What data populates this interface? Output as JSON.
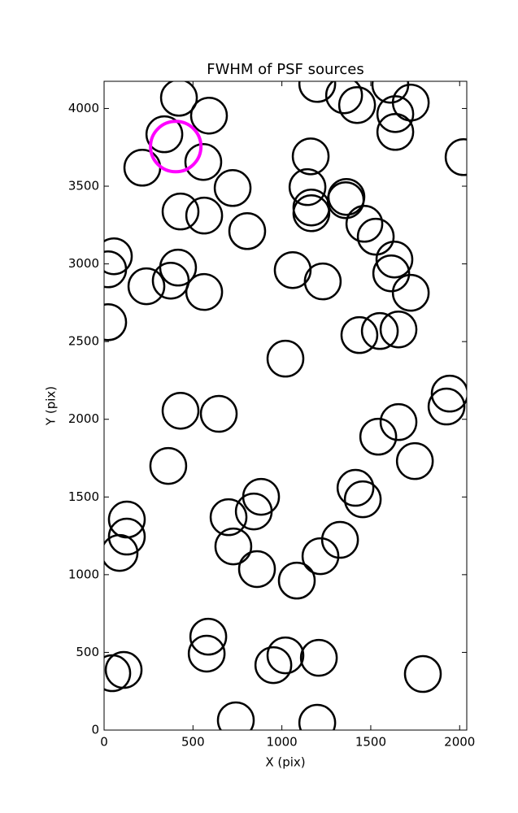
{
  "chart_data": {
    "type": "scatter",
    "title": "FWHM of PSF sources",
    "x_label": "X (pix)",
    "y_label": "Y (pix)",
    "xlim": [
      0,
      2040
    ],
    "ylim": [
      0,
      4175
    ],
    "xticks": [
      0,
      500,
      1000,
      1500,
      2000
    ],
    "yticks": [
      0,
      500,
      1000,
      1500,
      2000,
      2500,
      3000,
      3500,
      4000
    ],
    "series": [
      {
        "color": "#000000",
        "x": [
          421,
          590,
          339,
          215,
          558,
          723,
          430,
          563,
          805,
          55,
          23,
          416,
          375,
          238,
          563,
          23,
          1061,
          1230,
          1020,
          430,
          645,
          361,
          128,
          128,
          87,
          883,
          700,
          842,
          727,
          860,
          1084,
          1217,
          1327,
          586,
          577,
          1020,
          952,
          1208,
          110,
          46,
          1793,
          741,
          1199,
          1414,
          1455,
          1542,
          1656,
          1748,
          1926,
          1944,
          1436,
          1551,
          1656,
          1725,
          1615,
          1633,
          1528,
          1464,
          1359,
          1363,
          1166,
          1166,
          1144,
          1162,
          2022,
          1638,
          1638,
          1725,
          1423,
          1350,
          1199,
          1610
        ],
        "values": [
          4069,
          3954,
          3834,
          3619,
          3656,
          3488,
          3337,
          3311,
          3211,
          3049,
          2965,
          2976,
          2892,
          2856,
          2819,
          2625,
          2960,
          2887,
          2390,
          2055,
          2035,
          1700,
          1355,
          1245,
          1140,
          1501,
          1370,
          1407,
          1182,
          1036,
          962,
          1119,
          1224,
          601,
          492,
          481,
          418,
          465,
          387,
          366,
          361,
          63,
          47,
          1559,
          1485,
          1888,
          1982,
          1731,
          2082,
          2165,
          2542,
          2568,
          2578,
          2814,
          2939,
          3028,
          3175,
          3258,
          3410,
          3431,
          3326,
          3363,
          3494,
          3692,
          3687,
          3849,
          3964,
          4038,
          4022,
          4085,
          4158,
          4153
        ]
      },
      {
        "color": "#ff00ff",
        "x": [
          403
        ],
        "values": [
          3755
        ]
      }
    ]
  }
}
